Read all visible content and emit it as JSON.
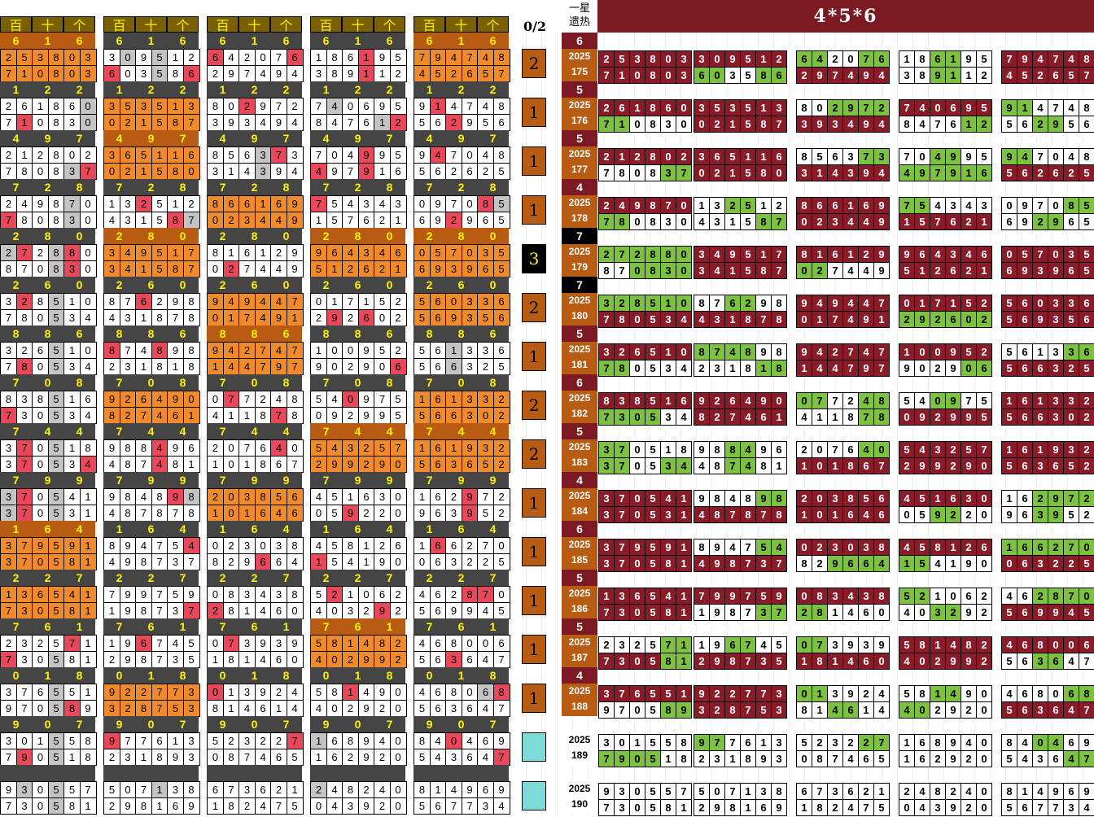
{
  "title": "4*5*6",
  "ratio_label": "0/2",
  "yixing_label": "一星\n遗热",
  "header_labels": [
    "百",
    "十",
    "个"
  ],
  "colors": {
    "orange": "#f08a2a",
    "dark_orange": "#b85c14",
    "gray": "#c4c4c4",
    "red": "#e8485a",
    "green": "#7cc240",
    "maroon": "#8a1b28",
    "teal": "#7fd9d6",
    "header_bg": "#7a6000",
    "header_text": "#fff200",
    "triplet_bg": "#454545"
  },
  "blocks": [
    {
      "period": "175",
      "year": "2025",
      "hot": "6",
      "hot_dark": false,
      "count": "2",
      "count_style": "orange",
      "triplets": [
        "616",
        "616",
        "616",
        "616",
        "616"
      ],
      "rowsA": [
        "253803",
        "309512",
        "642076",
        "186195",
        "794748"
      ],
      "rowsB": [
        "710803",
        "603586",
        "297494",
        "389112",
        "452657"
      ],
      "styleA": [
        "OOOOOO",
        "WGWGWW",
        "RWWWWR",
        "WWWRWW",
        "OOOOOO"
      ],
      "styleB": [
        "OOOOOO",
        "RWWGWR",
        "WWWWWW",
        "WWWRWW",
        "OOOOOO"
      ],
      "rightA": [
        "253803",
        "309512",
        "642076",
        "186195",
        "794748"
      ],
      "rightB": [
        "710803",
        "603586",
        "297494",
        "389112",
        "452657"
      ],
      "rstyleA": [
        "MMMMMM",
        "MMMMMM",
        "GGWWGG",
        "WWGGWW",
        "MMMMMM"
      ],
      "rstyleB": [
        "MMMMMM",
        "GGWWGG",
        "MMMMMM",
        "WWGGWW",
        "MMMMMM"
      ]
    },
    {
      "period": "176",
      "year": "2025",
      "hot": "5",
      "hot_dark": false,
      "count": "1",
      "count_style": "orange",
      "triplets": [
        "122",
        "122",
        "122",
        "122",
        "122"
      ],
      "rowsA": [
        "261860",
        "353513",
        "802972",
        "740695",
        "914748"
      ],
      "rowsB": [
        "710830",
        "021587",
        "393494",
        "847612",
        "562956"
      ],
      "styleA": [
        "WWWWWG",
        "OOOOOO",
        "WWRWWW",
        "WGWWWW",
        "WRWWWW"
      ],
      "styleB": [
        "WRWWWG",
        "OOOOOO",
        "WWWWWW",
        "WWWWGR",
        "WWRWWW"
      ],
      "rightA": [
        "261860",
        "353513",
        "802972",
        "740695",
        "914748"
      ],
      "rightB": [
        "710830",
        "021587",
        "393494",
        "847612",
        "562956"
      ],
      "rstyleA": [
        "MMMMMM",
        "MMMMMM",
        "WWGGGG",
        "MMMMMM",
        "GGWWWW"
      ],
      "rstyleB": [
        "GGWWWW",
        "MMMMMM",
        "MMMMMM",
        "WWWWGG",
        "WWGGWW"
      ]
    },
    {
      "period": "177",
      "year": "2025",
      "hot": "5",
      "hot_dark": false,
      "count": "1",
      "count_style": "orange",
      "triplets": [
        "497",
        "497",
        "497",
        "497",
        "497"
      ],
      "rowsA": [
        "212802",
        "365116",
        "856373",
        "704995",
        "947048"
      ],
      "rowsB": [
        "780837",
        "021580",
        "314394",
        "497916",
        "562625"
      ],
      "styleA": [
        "WWWWWW",
        "OOOOOO",
        "WWWGRW",
        "WWWRWW",
        "WRWWWW"
      ],
      "styleB": [
        "WWWWGR",
        "OOOOOO",
        "WWWGWW",
        "RWWRWW",
        "WWWWWW"
      ],
      "rightA": [
        "212802",
        "365116",
        "856373",
        "704995",
        "947048"
      ],
      "rightB": [
        "780837",
        "021580",
        "314394",
        "497916",
        "562625"
      ],
      "rstyleA": [
        "MMMMMM",
        "MMMMMM",
        "WWWWGG",
        "WWGGWW",
        "GGWWWW"
      ],
      "rstyleB": [
        "WWWWGG",
        "MMMMMM",
        "MMMMMM",
        "GGGGGG",
        "MMMMMM"
      ]
    },
    {
      "period": "178",
      "year": "2025",
      "hot": "4",
      "hot_dark": false,
      "count": "1",
      "count_style": "orange",
      "triplets": [
        "728",
        "728",
        "728",
        "728",
        "728"
      ],
      "rowsA": [
        "249870",
        "132512",
        "866169",
        "754343",
        "097085"
      ],
      "rowsB": [
        "780830",
        "431587",
        "023449",
        "157621",
        "692965"
      ],
      "styleA": [
        "WWWWGW",
        "WWRWWW",
        "OOOOOO",
        "RWWWWW",
        "WWWWRG"
      ],
      "styleB": [
        "RWWWGW",
        "WWWWRG",
        "OOOOOO",
        "WWWWWW",
        "WWRWWW"
      ],
      "rightA": [
        "249870",
        "132512",
        "866169",
        "754343",
        "097085"
      ],
      "rightB": [
        "780830",
        "431587",
        "023449",
        "157621",
        "692965"
      ],
      "rstyleA": [
        "MMMMMM",
        "WWGGWW",
        "MMMMMM",
        "GGWWWW",
        "WWWWGG"
      ],
      "rstyleB": [
        "GGWWWW",
        "WWWWGG",
        "MMMMMM",
        "MMMMMM",
        "WWGGWW"
      ]
    },
    {
      "period": "179",
      "year": "2025",
      "hot": "7",
      "hot_dark": true,
      "count": "3",
      "count_style": "black",
      "triplets": [
        "280",
        "280",
        "280",
        "280",
        "280"
      ],
      "rowsA": [
        "272880",
        "349517",
        "816129",
        "964346",
        "057035"
      ],
      "rowsB": [
        "870830",
        "341587",
        "027449",
        "512621",
        "693965"
      ],
      "styleA": [
        "GRWGRW",
        "OOOOOO",
        "WWWWWW",
        "OOOOOO",
        "OOOOOO"
      ],
      "styleB": [
        "WWWGRW",
        "OOOOOO",
        "WRWWWW",
        "OOOOOO",
        "OOOOOO"
      ],
      "rightA": [
        "272880",
        "349517",
        "816129",
        "964346",
        "057035"
      ],
      "rightB": [
        "870830",
        "341587",
        "027449",
        "512621",
        "693965"
      ],
      "rstyleA": [
        "GGGGGG",
        "MMMMMM",
        "MMMMMM",
        "MMMMMM",
        "MMMMMM"
      ],
      "rstyleB": [
        "WWGGGG",
        "MMMMMM",
        "GGWWWW",
        "MMMMMM",
        "MMMMMM"
      ]
    },
    {
      "period": "180",
      "year": "2025",
      "hot": "7",
      "hot_dark": true,
      "count": "2",
      "count_style": "orange",
      "triplets": [
        "260",
        "260",
        "260",
        "260",
        "260"
      ],
      "rowsA": [
        "328510",
        "876298",
        "949447",
        "017152",
        "560336"
      ],
      "rowsB": [
        "780534",
        "431878",
        "017491",
        "292602",
        "569356"
      ],
      "styleA": [
        "WRWGWW",
        "WWRWWW",
        "OOOOOO",
        "WWWWWW",
        "OOOOOO"
      ],
      "styleB": [
        "WWWGWW",
        "WWWWWW",
        "OOOOOO",
        "WRWRWW",
        "OOOOOO"
      ],
      "rightA": [
        "328510",
        "876298",
        "949447",
        "017152",
        "560336"
      ],
      "rightB": [
        "780534",
        "431878",
        "017491",
        "292602",
        "569356"
      ],
      "rstyleA": [
        "GGGGGG",
        "WWGGWW",
        "MMMMMM",
        "MMMMMM",
        "MMMMMM"
      ],
      "rstyleB": [
        "MMMMMM",
        "MMMMMM",
        "MMMMMM",
        "GGGGGG",
        "MMMMMM"
      ]
    },
    {
      "period": "181",
      "year": "2025",
      "hot": "5",
      "hot_dark": false,
      "count": "1",
      "count_style": "orange",
      "triplets": [
        "886",
        "886",
        "886",
        "886",
        "886"
      ],
      "rowsA": [
        "326510",
        "874898",
        "942747",
        "100952",
        "561336"
      ],
      "rowsB": [
        "780534",
        "231818",
        "144797",
        "902906",
        "566325"
      ],
      "styleA": [
        "WWWGWW",
        "RWWRWW",
        "OOOOOO",
        "WWWWWW",
        "WWGWWW"
      ],
      "styleB": [
        "WRWGWW",
        "WWWWWW",
        "OOOOOO",
        "WWWWWR",
        "WWGWWW"
      ],
      "rightA": [
        "326510",
        "874898",
        "942747",
        "100952",
        "561336"
      ],
      "rightB": [
        "780534",
        "231818",
        "144797",
        "902906",
        "566325"
      ],
      "rstyleA": [
        "MMMMMM",
        "GGGGWW",
        "MMMMMM",
        "MMMMMM",
        "WWWWGG"
      ],
      "rstyleB": [
        "GGWWWW",
        "WWWWGG",
        "MMMMMM",
        "WWWWGG",
        "MMMMMM"
      ]
    },
    {
      "period": "182",
      "year": "2025",
      "hot": "6",
      "hot_dark": false,
      "count": "2",
      "count_style": "orange",
      "triplets": [
        "708",
        "708",
        "708",
        "708",
        "708"
      ],
      "rowsA": [
        "838516",
        "926490",
        "077248",
        "540975",
        "161332"
      ],
      "rowsB": [
        "730534",
        "827461",
        "411878",
        "092995",
        "566302"
      ],
      "styleA": [
        "WWWGWW",
        "OOOOOO",
        "WRWWWW",
        "WWRWWW",
        "OOOOOO"
      ],
      "styleB": [
        "RWWGWW",
        "OOOOOO",
        "WWWWRW",
        "WWWWWW",
        "OOOOOO"
      ],
      "rightA": [
        "838516",
        "926490",
        "077248",
        "540975",
        "161332"
      ],
      "rightB": [
        "730534",
        "827461",
        "411878",
        "092995",
        "566302"
      ],
      "rstyleA": [
        "MMMMMM",
        "MMMMMM",
        "GGWWGG",
        "WWGGWW",
        "MMMMMM"
      ],
      "rstyleB": [
        "GGGGWW",
        "MMMMMM",
        "WWWWGG",
        "MMMMMM",
        "MMMMMM"
      ]
    },
    {
      "period": "183",
      "year": "2025",
      "hot": "5",
      "hot_dark": false,
      "count": "2",
      "count_style": "orange",
      "triplets": [
        "744",
        "744",
        "744",
        "744",
        "744"
      ],
      "rowsA": [
        "370518",
        "988496",
        "207640",
        "543257",
        "161932"
      ],
      "rowsB": [
        "370534",
        "487481",
        "101867",
        "299290",
        "563652"
      ],
      "styleA": [
        "WRWGWW",
        "WWWRWW",
        "WWWWRW",
        "OOOOOO",
        "OOOOOO"
      ],
      "styleB": [
        "WRWGWR",
        "WWWRWW",
        "WWWWWW",
        "OOOOOO",
        "OOOOOO"
      ],
      "rightA": [
        "370518",
        "988496",
        "207640",
        "543257",
        "161932"
      ],
      "rightB": [
        "370534",
        "487481",
        "101867",
        "299290",
        "563652"
      ],
      "rstyleA": [
        "GGWWWW",
        "WWGGWW",
        "WWWWGG",
        "MMMMMM",
        "MMMMMM"
      ],
      "rstyleB": [
        "GGWWGG",
        "WWGGWW",
        "MMMMMM",
        "MMMMMM",
        "MMMMMM"
      ]
    },
    {
      "period": "184",
      "year": "2025",
      "hot": "4",
      "hot_dark": false,
      "count": "1",
      "count_style": "orange",
      "triplets": [
        "799",
        "799",
        "799",
        "799",
        "799"
      ],
      "rowsA": [
        "370541",
        "984898",
        "203856",
        "451630",
        "162972"
      ],
      "rowsB": [
        "370531",
        "487878",
        "101646",
        "059220",
        "963952"
      ],
      "styleA": [
        "GRWGWW",
        "WWWWRG",
        "OOOOOO",
        "WWWWWW",
        "WWWRWW"
      ],
      "styleB": [
        "GRWGWW",
        "WWWWWW",
        "OOOOOO",
        "WWRWWW",
        "WWWRWW"
      ],
      "rightA": [
        "370541",
        "984898",
        "203856",
        "451630",
        "162972"
      ],
      "rightB": [
        "370531",
        "487878",
        "101646",
        "059220",
        "963952"
      ],
      "rstyleA": [
        "MMMMMM",
        "WWWWGG",
        "MMMMMM",
        "MMMMMM",
        "WWGGGG"
      ],
      "rstyleB": [
        "MMMMMM",
        "MMMMMM",
        "MMMMMM",
        "WWGGWW",
        "WWGGWW"
      ]
    },
    {
      "period": "185",
      "year": "2025",
      "hot": "6",
      "hot_dark": false,
      "count": "1",
      "count_style": "orange",
      "triplets": [
        "164",
        "164",
        "164",
        "164",
        "164"
      ],
      "rowsA": [
        "379591",
        "894754",
        "023038",
        "458126",
        "166270"
      ],
      "rowsB": [
        "370581",
        "498737",
        "829664",
        "154190",
        "063225"
      ],
      "styleA": [
        "OOOOOO",
        "WWWWWR",
        "WWWWWW",
        "WWWWWW",
        "WRWWWW"
      ],
      "styleB": [
        "OOOOOO",
        "WWWWWW",
        "WWWRWW",
        "RWWWWW",
        "WWWWWW"
      ],
      "rightA": [
        "379591",
        "894754",
        "023038",
        "458126",
        "166270"
      ],
      "rightB": [
        "370581",
        "498737",
        "829664",
        "154190",
        "063225"
      ],
      "rstyleA": [
        "MMMMMM",
        "WWWWGG",
        "MMMMMM",
        "MMMMMM",
        "GGGGGG"
      ],
      "rstyleB": [
        "MMMMMM",
        "MMMMMM",
        "WWGGGG",
        "GGWWWW",
        "MMMMMM"
      ]
    },
    {
      "period": "186",
      "year": "2025",
      "hot": "5",
      "hot_dark": false,
      "count": "1",
      "count_style": "orange",
      "triplets": [
        "227",
        "227",
        "227",
        "227",
        "227"
      ],
      "rowsA": [
        "136541",
        "799759",
        "083438",
        "521062",
        "462870"
      ],
      "rowsB": [
        "730581",
        "198737",
        "281460",
        "403292",
        "569945"
      ],
      "styleA": [
        "OOOOOO",
        "WWWWWW",
        "WWWWWW",
        "WRWWWW",
        "WWWRRW"
      ],
      "styleB": [
        "OOOOOO",
        "WWWWWR",
        "RWWWWW",
        "WWWWRW",
        "WWWWWW"
      ],
      "rightA": [
        "136541",
        "799759",
        "083438",
        "521062",
        "462870"
      ],
      "rightB": [
        "730581",
        "198737",
        "281460",
        "403292",
        "569945"
      ],
      "rstyleA": [
        "MMMMMM",
        "MMMMMM",
        "MMMMMM",
        "GGWWWW",
        "WWGGGG"
      ],
      "rstyleB": [
        "MMMMMM",
        "WWWWGG",
        "GGWWWW",
        "WWGGWW",
        "MMMMMM"
      ]
    },
    {
      "period": "187",
      "year": "2025",
      "hot": "5",
      "hot_dark": false,
      "count": "1",
      "count_style": "orange",
      "triplets": [
        "761",
        "761",
        "761",
        "761",
        "761"
      ],
      "rowsA": [
        "232571",
        "196745",
        "073939",
        "581482",
        "468006"
      ],
      "rowsB": [
        "730581",
        "298735",
        "181460",
        "402992",
        "563647"
      ],
      "styleA": [
        "WWWWRW",
        "WWRWWW",
        "WRWWWW",
        "OOOOOO",
        "WWWWWW"
      ],
      "styleB": [
        "RWWGWW",
        "WWWWWW",
        "WWWWWW",
        "OOOOOO",
        "WWRWWW"
      ],
      "rightA": [
        "232571",
        "196745",
        "073939",
        "581482",
        "468006"
      ],
      "rightB": [
        "730581",
        "298735",
        "181460",
        "402992",
        "563647"
      ],
      "rstyleA": [
        "WWWWGG",
        "WWGGWW",
        "GGWWWW",
        "MMMMMM",
        "MMMMMM"
      ],
      "rstyleB": [
        "MMMMGG",
        "MMMMMM",
        "MMMMMM",
        "MMMMMM",
        "WWGGWW"
      ]
    },
    {
      "period": "188",
      "year": "2025",
      "hot": "4",
      "hot_dark": false,
      "count": "1",
      "count_style": "orange",
      "triplets": [
        "018",
        "018",
        "018",
        "018",
        "018"
      ],
      "rowsA": [
        "376551",
        "922773",
        "013924",
        "581490",
        "468068"
      ],
      "rowsB": [
        "970589",
        "328753",
        "814614",
        "402920",
        "563647"
      ],
      "styleA": [
        "WWWGWW",
        "OOOOOO",
        "RWWWWW",
        "WWRWWW",
        "WWWWGR"
      ],
      "styleB": [
        "WWWGRW",
        "OOOOOO",
        "WWWWWW",
        "WWWWWW",
        "WWWWWW"
      ],
      "rightA": [
        "376551",
        "922773",
        "013924",
        "581490",
        "468068"
      ],
      "rightB": [
        "970589",
        "328753",
        "814614",
        "402920",
        "563647"
      ],
      "rstyleA": [
        "MMMMMM",
        "MMMMMM",
        "GGWWWW",
        "WWGGWW",
        "WWWWGG"
      ],
      "rstyleB": [
        "WWWWGG",
        "MMMMMM",
        "WWGGWW",
        "GGWWWW",
        "MMMMMM"
      ]
    },
    {
      "period": "189",
      "year": "2025",
      "hot": "",
      "hot_dark": false,
      "count": "",
      "count_style": "teal",
      "triplets": [
        "907",
        "907",
        "907",
        "907",
        "907"
      ],
      "rowsA": [
        "301558",
        "977613",
        "523227",
        "168940",
        "840469"
      ],
      "rowsB": [
        "790518",
        "231893",
        "087465",
        "162920",
        "543647"
      ],
      "styleA": [
        "WWWGWW",
        "RWWWWW",
        "WWWWWR",
        "GWWWWW",
        "WWRWWW"
      ],
      "styleB": [
        "WRWGWW",
        "WWWWWW",
        "WWWWWW",
        "WWWWWW",
        "WWWWWR"
      ],
      "rightA": [
        "301558",
        "977613",
        "523227",
        "168940",
        "840469"
      ],
      "rightB": [
        "790518",
        "231893",
        "087465",
        "162920",
        "543647"
      ],
      "rstyleA": [
        "WWWWWW",
        "GGWWWW",
        "WWWWGG",
        "WWWWWW",
        "WWGGWW"
      ],
      "rstyleB": [
        "GGGGWW",
        "WWWWWW",
        "WWWWWW",
        "WWWWWW",
        "WWWWGG"
      ]
    },
    {
      "period": "190",
      "year": "2025",
      "hot": "",
      "hot_dark": false,
      "count": "",
      "count_style": "teal",
      "triplets": [
        "",
        "",
        "",
        "",
        ""
      ],
      "rowsA": [
        "930557",
        "507138",
        "673621",
        "248240",
        "814969"
      ],
      "rowsB": [
        "730581",
        "298169",
        "182475",
        "043920",
        "567734"
      ],
      "styleA": [
        "WGWGWW",
        "WWWGWW",
        "WWWWWW",
        "GWWWWW",
        "WWWWWW"
      ],
      "styleB": [
        "WWWGWW",
        "WWWWWW",
        "WWWWWW",
        "WWWWWW",
        "WWWWWW"
      ],
      "rightA": [
        "930557",
        "507138",
        "673621",
        "248240",
        "814969"
      ],
      "rightB": [
        "730581",
        "298169",
        "182475",
        "043920",
        "567734"
      ],
      "rstyleA": [
        "WWWWWW",
        "WWWWWW",
        "WWWWWW",
        "WWWWWW",
        "WWWWWW"
      ],
      "rstyleB": [
        "WWWWWW",
        "WWWWWW",
        "WWWWWW",
        "WWWWWW",
        "WWWWWW"
      ]
    }
  ]
}
